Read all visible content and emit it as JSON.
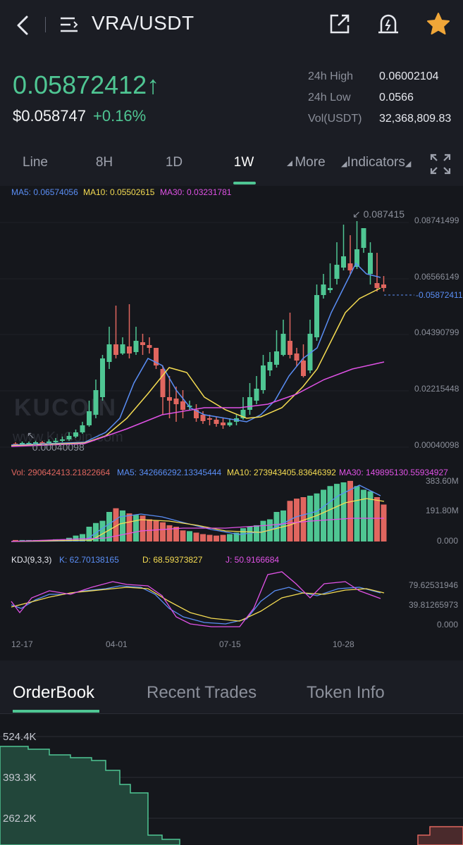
{
  "header": {
    "title": "VRA/USDT",
    "icons": [
      "back-arrow-icon",
      "menu-icon",
      "share-icon",
      "price-alert-icon",
      "star-icon"
    ]
  },
  "price": {
    "last": "0.05872412",
    "arrow": "↑",
    "usd": "$0.058747",
    "change": "+0.16%",
    "stats": [
      {
        "label": "24h High",
        "value": "0.06002104"
      },
      {
        "label": "24h Low",
        "value": "0.0566"
      },
      {
        "label": "Vol(USDT)",
        "value": "32,368,809.83"
      }
    ]
  },
  "timeframes": {
    "items": [
      "Line",
      "8H",
      "1D",
      "1W",
      "More"
    ],
    "active": "1W",
    "indicators": "Indicators"
  },
  "chart": {
    "ma_legend": {
      "ma5": "MA5: 0.06574056",
      "ma10": "MA10: 0.05502615",
      "ma30": "MA30: 0.03231781"
    },
    "price_axis": [
      "0.08741499",
      "0.06566149",
      "0.04390799",
      "0.02215448",
      "0.00040098"
    ],
    "current_price_tag": "0.05872411",
    "high_marker": "0.087415",
    "low_marker": "0.00040098",
    "watermark_main": "KUCOIN",
    "watermark_url": "www.KuCoin.com",
    "vol_legend": {
      "vol": "Vol: 290642413.21822664",
      "ma5": "MA5: 342666292.13345444",
      "ma10": "MA10: 273943405.83646392",
      "ma30": "MA30: 149895130.55934927"
    },
    "vol_axis": [
      "383.60M",
      "191.80M",
      "0.000"
    ],
    "kdj_legend": {
      "name": "KDJ(9,3,3)",
      "k": "K: 62.70138165",
      "d": "D: 68.59373827",
      "j": "J: 50.9166684"
    },
    "kdj_axis": [
      "79.62531946",
      "39.81265973",
      "0.000"
    ],
    "date_axis": [
      "12-17",
      "04-01",
      "07-15",
      "10-28"
    ],
    "colors": {
      "up": "#4fc693",
      "down": "#e0665f",
      "ma5": "#5a8ef5",
      "ma10": "#f5dc52",
      "ma30": "#e052e6"
    }
  },
  "bottom_tabs": {
    "items": [
      "OrderBook",
      "Recent Trades",
      "Token Info"
    ],
    "active": "OrderBook"
  },
  "depth": {
    "axis": [
      "524.4K",
      "393.3K",
      "262.2K"
    ]
  }
}
